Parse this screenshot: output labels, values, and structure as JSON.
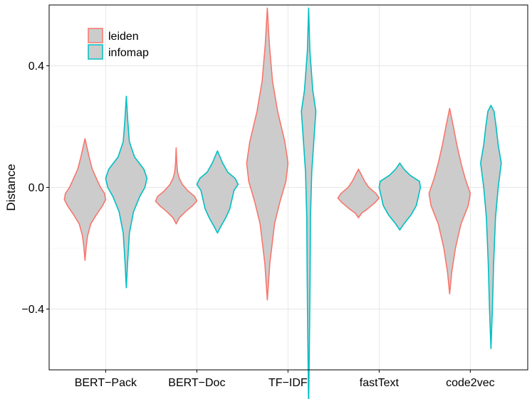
{
  "chart_data": {
    "type": "violin",
    "title": "",
    "xlabel": "",
    "ylabel": "Distance",
    "ylim": [
      -0.6,
      0.6
    ],
    "yticks": [
      -0.4,
      0.0,
      0.4
    ],
    "ytick_labels": [
      "−0.4",
      "0.0",
      "0.4"
    ],
    "grid": true,
    "legend_position": "top-left",
    "categories": [
      "BERT−Pack",
      "BERT−Doc",
      "TF−IDF",
      "fastText",
      "code2vec"
    ],
    "fill_color": "#cccccc",
    "series": [
      {
        "name": "leiden",
        "color": "#F8766D",
        "violins": [
          {
            "min": -0.24,
            "max": 0.16,
            "profile": [
              [
                -0.24,
                0.0
              ],
              [
                -0.2,
                0.05
              ],
              [
                -0.16,
                0.12
              ],
              [
                -0.12,
                0.28
              ],
              [
                -0.09,
                0.55
              ],
              [
                -0.06,
                0.85
              ],
              [
                -0.04,
                1.0
              ],
              [
                -0.02,
                0.95
              ],
              [
                0.0,
                0.75
              ],
              [
                0.03,
                0.55
              ],
              [
                0.06,
                0.35
              ],
              [
                0.1,
                0.2
              ],
              [
                0.13,
                0.1
              ],
              [
                0.16,
                0.0
              ]
            ]
          },
          {
            "min": -0.12,
            "max": 0.13,
            "profile": [
              [
                -0.12,
                0.0
              ],
              [
                -0.1,
                0.15
              ],
              [
                -0.08,
                0.45
              ],
              [
                -0.06,
                0.8
              ],
              [
                -0.045,
                1.0
              ],
              [
                -0.03,
                0.9
              ],
              [
                -0.01,
                0.55
              ],
              [
                0.01,
                0.3
              ],
              [
                0.03,
                0.15
              ],
              [
                0.05,
                0.07
              ],
              [
                0.08,
                0.03
              ],
              [
                0.13,
                0.0
              ]
            ]
          },
          {
            "min": -0.37,
            "max": 0.59,
            "profile": [
              [
                -0.37,
                0.0
              ],
              [
                -0.25,
                0.12
              ],
              [
                -0.12,
                0.35
              ],
              [
                -0.05,
                0.6
              ],
              [
                0.02,
                0.9
              ],
              [
                0.08,
                1.0
              ],
              [
                0.15,
                0.85
              ],
              [
                0.25,
                0.5
              ],
              [
                0.35,
                0.25
              ],
              [
                0.47,
                0.1
              ],
              [
                0.59,
                0.0
              ]
            ]
          },
          {
            "min": -0.1,
            "max": 0.06,
            "profile": [
              [
                -0.1,
                0.0
              ],
              [
                -0.085,
                0.15
              ],
              [
                -0.07,
                0.45
              ],
              [
                -0.05,
                0.8
              ],
              [
                -0.035,
                1.0
              ],
              [
                -0.02,
                0.85
              ],
              [
                0.0,
                0.5
              ],
              [
                0.02,
                0.3
              ],
              [
                0.04,
                0.15
              ],
              [
                0.06,
                0.0
              ]
            ]
          },
          {
            "min": -0.35,
            "max": 0.26,
            "profile": [
              [
                -0.35,
                0.0
              ],
              [
                -0.28,
                0.1
              ],
              [
                -0.2,
                0.28
              ],
              [
                -0.12,
                0.55
              ],
              [
                -0.06,
                0.9
              ],
              [
                -0.02,
                1.0
              ],
              [
                0.03,
                0.75
              ],
              [
                0.08,
                0.55
              ],
              [
                0.14,
                0.35
              ],
              [
                0.2,
                0.18
              ],
              [
                0.26,
                0.0
              ]
            ]
          }
        ]
      },
      {
        "name": "infomap",
        "color": "#00BFC4",
        "violins": [
          {
            "min": -0.33,
            "max": 0.3,
            "profile": [
              [
                -0.33,
                0.0
              ],
              [
                -0.25,
                0.06
              ],
              [
                -0.15,
                0.15
              ],
              [
                -0.08,
                0.35
              ],
              [
                -0.03,
                0.65
              ],
              [
                0.0,
                0.9
              ],
              [
                0.03,
                1.0
              ],
              [
                0.06,
                0.85
              ],
              [
                0.1,
                0.4
              ],
              [
                0.15,
                0.15
              ],
              [
                0.22,
                0.07
              ],
              [
                0.3,
                0.0
              ]
            ]
          },
          {
            "min": -0.15,
            "max": 0.12,
            "profile": [
              [
                -0.15,
                0.0
              ],
              [
                -0.13,
                0.15
              ],
              [
                -0.1,
                0.4
              ],
              [
                -0.07,
                0.6
              ],
              [
                -0.04,
                0.7
              ],
              [
                -0.01,
                0.8
              ],
              [
                0.01,
                1.0
              ],
              [
                0.03,
                0.85
              ],
              [
                0.05,
                0.5
              ],
              [
                0.08,
                0.25
              ],
              [
                0.12,
                0.0
              ]
            ]
          },
          {
            "min": -0.72,
            "max": 0.59,
            "profile": [
              [
                -0.72,
                0.0
              ],
              [
                -0.5,
                0.04
              ],
              [
                -0.3,
                0.07
              ],
              [
                -0.1,
                0.09
              ],
              [
                0.05,
                0.15
              ],
              [
                0.15,
                0.25
              ],
              [
                0.25,
                0.35
              ],
              [
                0.32,
                0.2
              ],
              [
                0.45,
                0.06
              ],
              [
                0.59,
                0.0
              ]
            ]
          },
          {
            "min": -0.14,
            "max": 0.08,
            "profile": [
              [
                -0.14,
                0.0
              ],
              [
                -0.12,
                0.2
              ],
              [
                -0.09,
                0.55
              ],
              [
                -0.06,
                0.8
              ],
              [
                -0.03,
                0.9
              ],
              [
                0.0,
                1.0
              ],
              [
                0.02,
                0.95
              ],
              [
                0.04,
                0.5
              ],
              [
                0.06,
                0.2
              ],
              [
                0.08,
                0.0
              ]
            ]
          },
          {
            "min": -0.53,
            "max": 0.27,
            "profile": [
              [
                -0.53,
                0.0
              ],
              [
                -0.4,
                0.07
              ],
              [
                -0.25,
                0.13
              ],
              [
                -0.1,
                0.22
              ],
              [
                0.0,
                0.35
              ],
              [
                0.08,
                0.5
              ],
              [
                0.14,
                0.35
              ],
              [
                0.2,
                0.25
              ],
              [
                0.25,
                0.15
              ],
              [
                0.27,
                0.0
              ]
            ]
          }
        ]
      }
    ]
  }
}
